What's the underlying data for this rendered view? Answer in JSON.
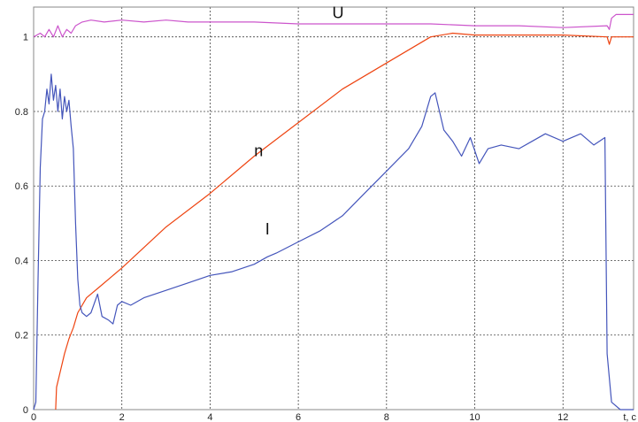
{
  "chart_data": {
    "type": "line",
    "xlabel": "t, c",
    "ylabel": "",
    "xlim": [
      0,
      13.6
    ],
    "ylim": [
      0,
      1.08
    ],
    "grid": true,
    "x_ticks": [
      "0",
      "2",
      "4",
      "6",
      "8",
      "10",
      "12"
    ],
    "y_ticks": [
      "0",
      "0.2",
      "0.4",
      "0.6",
      "0.8",
      "1"
    ],
    "series": [
      {
        "name": "U",
        "color": "#cc55cc",
        "points": [
          [
            0.0,
            1.0
          ],
          [
            0.15,
            1.01
          ],
          [
            0.25,
            1.0
          ],
          [
            0.35,
            1.02
          ],
          [
            0.45,
            1.0
          ],
          [
            0.55,
            1.03
          ],
          [
            0.65,
            1.0
          ],
          [
            0.75,
            1.02
          ],
          [
            0.85,
            1.01
          ],
          [
            0.95,
            1.03
          ],
          [
            1.1,
            1.04
          ],
          [
            1.3,
            1.045
          ],
          [
            1.6,
            1.04
          ],
          [
            2.0,
            1.045
          ],
          [
            2.5,
            1.04
          ],
          [
            3.0,
            1.045
          ],
          [
            3.5,
            1.04
          ],
          [
            4.0,
            1.04
          ],
          [
            5.0,
            1.04
          ],
          [
            6.0,
            1.035
          ],
          [
            7.0,
            1.035
          ],
          [
            8.0,
            1.035
          ],
          [
            9.0,
            1.035
          ],
          [
            10.0,
            1.03
          ],
          [
            11.0,
            1.03
          ],
          [
            12.0,
            1.025
          ],
          [
            13.0,
            1.03
          ],
          [
            13.05,
            1.02
          ],
          [
            13.1,
            1.05
          ],
          [
            13.2,
            1.06
          ],
          [
            13.6,
            1.06
          ]
        ]
      },
      {
        "name": "n",
        "color": "#ee4411",
        "points": [
          [
            0.5,
            0.0
          ],
          [
            0.52,
            0.06
          ],
          [
            0.6,
            0.1
          ],
          [
            0.7,
            0.15
          ],
          [
            0.8,
            0.19
          ],
          [
            0.9,
            0.22
          ],
          [
            1.0,
            0.26
          ],
          [
            1.2,
            0.3
          ],
          [
            1.5,
            0.33
          ],
          [
            2.0,
            0.38
          ],
          [
            3.0,
            0.49
          ],
          [
            4.0,
            0.58
          ],
          [
            5.0,
            0.68
          ],
          [
            6.0,
            0.77
          ],
          [
            7.0,
            0.86
          ],
          [
            8.0,
            0.93
          ],
          [
            9.0,
            1.0
          ],
          [
            9.5,
            1.01
          ],
          [
            10.0,
            1.005
          ],
          [
            11.0,
            1.005
          ],
          [
            12.0,
            1.005
          ],
          [
            13.0,
            1.0
          ],
          [
            13.05,
            0.98
          ],
          [
            13.1,
            1.0
          ],
          [
            13.6,
            1.0
          ]
        ]
      },
      {
        "name": "I",
        "color": "#4455bb",
        "points": [
          [
            0.0,
            0.0
          ],
          [
            0.05,
            0.02
          ],
          [
            0.1,
            0.35
          ],
          [
            0.15,
            0.65
          ],
          [
            0.2,
            0.78
          ],
          [
            0.25,
            0.8
          ],
          [
            0.3,
            0.86
          ],
          [
            0.35,
            0.82
          ],
          [
            0.4,
            0.9
          ],
          [
            0.45,
            0.83
          ],
          [
            0.5,
            0.87
          ],
          [
            0.55,
            0.8
          ],
          [
            0.6,
            0.86
          ],
          [
            0.65,
            0.78
          ],
          [
            0.7,
            0.84
          ],
          [
            0.75,
            0.8
          ],
          [
            0.8,
            0.83
          ],
          [
            0.85,
            0.76
          ],
          [
            0.9,
            0.7
          ],
          [
            0.95,
            0.5
          ],
          [
            1.0,
            0.35
          ],
          [
            1.05,
            0.28
          ],
          [
            1.1,
            0.26
          ],
          [
            1.2,
            0.25
          ],
          [
            1.3,
            0.26
          ],
          [
            1.45,
            0.31
          ],
          [
            1.55,
            0.25
          ],
          [
            1.7,
            0.24
          ],
          [
            1.8,
            0.23
          ],
          [
            1.9,
            0.28
          ],
          [
            2.0,
            0.29
          ],
          [
            2.2,
            0.28
          ],
          [
            2.5,
            0.3
          ],
          [
            3.0,
            0.32
          ],
          [
            3.5,
            0.34
          ],
          [
            4.0,
            0.36
          ],
          [
            4.5,
            0.37
          ],
          [
            5.0,
            0.39
          ],
          [
            5.3,
            0.41
          ],
          [
            5.5,
            0.42
          ],
          [
            6.0,
            0.45
          ],
          [
            6.5,
            0.48
          ],
          [
            7.0,
            0.52
          ],
          [
            7.5,
            0.58
          ],
          [
            8.0,
            0.64
          ],
          [
            8.5,
            0.7
          ],
          [
            8.8,
            0.76
          ],
          [
            9.0,
            0.84
          ],
          [
            9.1,
            0.85
          ],
          [
            9.3,
            0.75
          ],
          [
            9.5,
            0.72
          ],
          [
            9.7,
            0.68
          ],
          [
            9.9,
            0.73
          ],
          [
            10.1,
            0.66
          ],
          [
            10.3,
            0.7
          ],
          [
            10.6,
            0.71
          ],
          [
            11.0,
            0.7
          ],
          [
            11.3,
            0.72
          ],
          [
            11.6,
            0.74
          ],
          [
            12.0,
            0.72
          ],
          [
            12.4,
            0.74
          ],
          [
            12.7,
            0.71
          ],
          [
            12.95,
            0.73
          ],
          [
            13.0,
            0.15
          ],
          [
            13.1,
            0.02
          ],
          [
            13.3,
            0.0
          ],
          [
            13.6,
            0.0
          ]
        ]
      }
    ],
    "labels": [
      {
        "text": "U",
        "x": 6.9,
        "y": 1.05
      },
      {
        "text": "n",
        "x": 5.1,
        "y": 0.68
      },
      {
        "text": "I",
        "x": 5.3,
        "y": 0.47
      }
    ]
  }
}
